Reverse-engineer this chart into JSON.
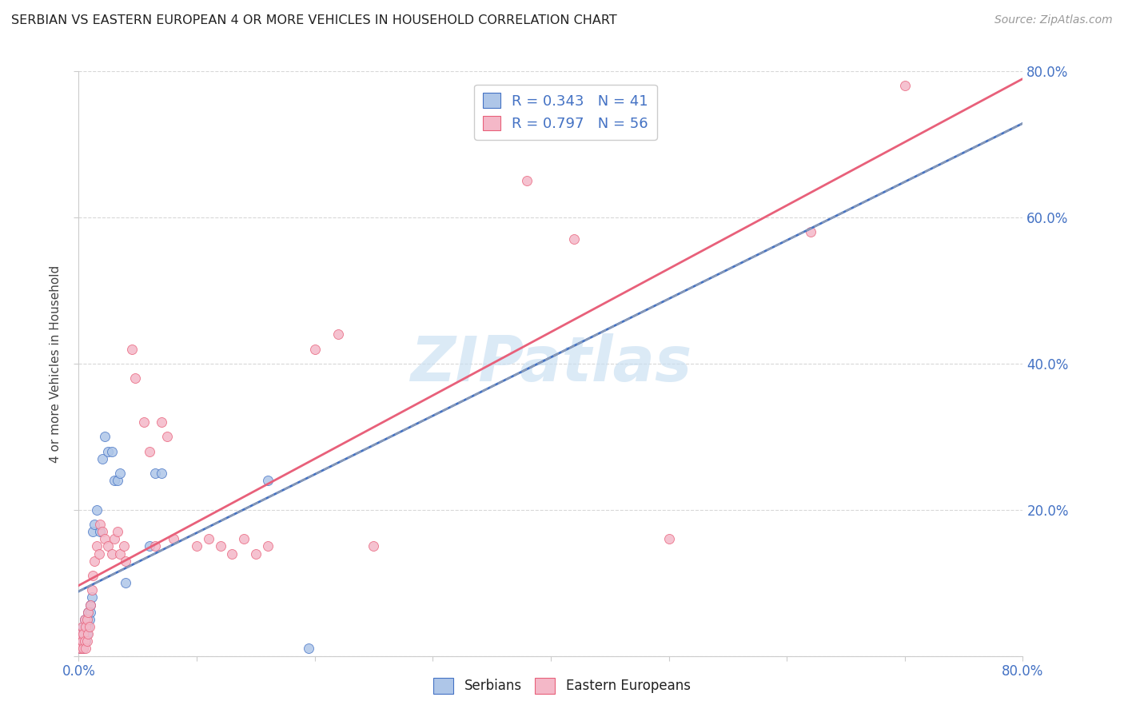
{
  "title": "SERBIAN VS EASTERN EUROPEAN 4 OR MORE VEHICLES IN HOUSEHOLD CORRELATION CHART",
  "source": "Source: ZipAtlas.com",
  "ylabel": "4 or more Vehicles in Household",
  "xlim": [
    0,
    0.8
  ],
  "ylim": [
    0,
    0.8
  ],
  "serbian_R": 0.343,
  "serbian_N": 41,
  "eastern_R": 0.797,
  "eastern_N": 56,
  "serbian_color": "#aec6e8",
  "eastern_color": "#f4b8c8",
  "serbian_line_color": "#4472c4",
  "eastern_line_color": "#e8607a",
  "legend_label_serbian": "Serbians",
  "legend_label_eastern": "Eastern Europeans",
  "watermark": "ZIPatlas",
  "watermark_color": "#c8dff2",
  "background_color": "#ffffff",
  "grid_color": "#d8d8d8",
  "right_axis_color": "#4472c4",
  "serbian_x": [
    0.001,
    0.001,
    0.002,
    0.002,
    0.002,
    0.003,
    0.003,
    0.003,
    0.004,
    0.004,
    0.004,
    0.005,
    0.005,
    0.005,
    0.006,
    0.006,
    0.007,
    0.007,
    0.008,
    0.008,
    0.009,
    0.01,
    0.01,
    0.011,
    0.012,
    0.013,
    0.015,
    0.018,
    0.02,
    0.022,
    0.025,
    0.028,
    0.03,
    0.033,
    0.035,
    0.04,
    0.06,
    0.065,
    0.07,
    0.16,
    0.195
  ],
  "serbian_y": [
    0.01,
    0.02,
    0.01,
    0.02,
    0.03,
    0.01,
    0.02,
    0.03,
    0.01,
    0.02,
    0.04,
    0.02,
    0.03,
    0.05,
    0.02,
    0.04,
    0.03,
    0.05,
    0.04,
    0.06,
    0.05,
    0.07,
    0.06,
    0.08,
    0.17,
    0.18,
    0.2,
    0.17,
    0.27,
    0.3,
    0.28,
    0.28,
    0.24,
    0.24,
    0.25,
    0.1,
    0.15,
    0.25,
    0.25,
    0.24,
    0.01
  ],
  "eastern_x": [
    0.001,
    0.001,
    0.002,
    0.002,
    0.003,
    0.003,
    0.004,
    0.004,
    0.005,
    0.005,
    0.006,
    0.006,
    0.007,
    0.007,
    0.008,
    0.008,
    0.009,
    0.01,
    0.011,
    0.012,
    0.013,
    0.015,
    0.017,
    0.018,
    0.02,
    0.022,
    0.025,
    0.028,
    0.03,
    0.033,
    0.035,
    0.038,
    0.04,
    0.045,
    0.048,
    0.055,
    0.06,
    0.065,
    0.07,
    0.075,
    0.08,
    0.1,
    0.11,
    0.12,
    0.13,
    0.14,
    0.15,
    0.16,
    0.2,
    0.22,
    0.25,
    0.38,
    0.42,
    0.5,
    0.62,
    0.7
  ],
  "eastern_y": [
    0.01,
    0.02,
    0.01,
    0.03,
    0.02,
    0.04,
    0.03,
    0.01,
    0.02,
    0.05,
    0.01,
    0.04,
    0.02,
    0.05,
    0.03,
    0.06,
    0.04,
    0.07,
    0.09,
    0.11,
    0.13,
    0.15,
    0.14,
    0.18,
    0.17,
    0.16,
    0.15,
    0.14,
    0.16,
    0.17,
    0.14,
    0.15,
    0.13,
    0.42,
    0.38,
    0.32,
    0.28,
    0.15,
    0.32,
    0.3,
    0.16,
    0.15,
    0.16,
    0.15,
    0.14,
    0.16,
    0.14,
    0.15,
    0.42,
    0.44,
    0.15,
    0.65,
    0.57,
    0.16,
    0.58,
    0.78
  ],
  "serbian_trend_start_x": 0.0,
  "serbian_trend_end_x": 0.8,
  "eastern_trend_start_x": 0.0,
  "eastern_trend_end_x": 0.8
}
